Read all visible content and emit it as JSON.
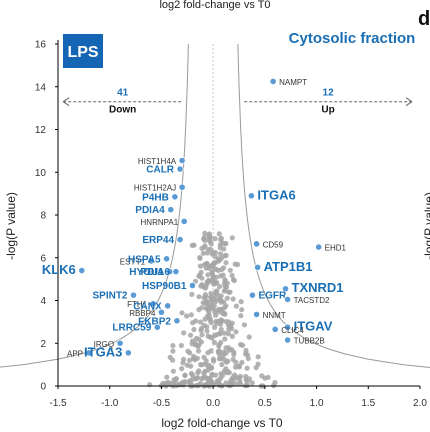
{
  "chart_data": {
    "type": "scatter",
    "title": "log2 fold-change vs T0",
    "subtitle": "Cytosolic fraction",
    "panel_letter": "d",
    "condition_label": "LPS",
    "xlabel": "log2 fold-change vs T0",
    "ylabel": "-log(P value)",
    "right_edge_label": "-log(P value)",
    "xlim": [
      -1.5,
      2.0
    ],
    "ylim": [
      0,
      16
    ],
    "x_ticks": [
      "-1.5",
      "-1.0",
      "-0.5",
      "0.0",
      "0.5",
      "1.0",
      "1.5",
      "2.0"
    ],
    "y_ticks": [
      "0",
      "2",
      "4",
      "6",
      "8",
      "10",
      "12",
      "14",
      "16"
    ],
    "down": {
      "count": "41",
      "label": "Down"
    },
    "up": {
      "count": "12",
      "label": "Up"
    },
    "colors": {
      "highlight": "#5b9bd5",
      "background": "#a6a6a6",
      "label": "#1a6fb5",
      "badge": "#1565b5",
      "threshold": "#9a9a9a"
    },
    "genes": [
      {
        "name": "NAMPT",
        "x": 0.58,
        "y": 14.25,
        "size": "small"
      },
      {
        "name": "HIST1H4A",
        "x": -0.3,
        "y": 10.55,
        "size": "small"
      },
      {
        "name": "CALR",
        "x": -0.32,
        "y": 10.15,
        "size": "medium"
      },
      {
        "name": "HIST1H2AJ",
        "x": -0.3,
        "y": 9.3,
        "size": "small"
      },
      {
        "name": "P4HB",
        "x": -0.37,
        "y": 8.85,
        "size": "medium"
      },
      {
        "name": "ITGA6",
        "x": 0.37,
        "y": 8.9,
        "size": "large"
      },
      {
        "name": "PDIA4",
        "x": -0.41,
        "y": 8.25,
        "size": "medium"
      },
      {
        "name": "HNRNPA1",
        "x": -0.28,
        "y": 7.7,
        "size": "small"
      },
      {
        "name": "ERP44",
        "x": -0.32,
        "y": 6.85,
        "size": "medium"
      },
      {
        "name": "CD59",
        "x": 0.42,
        "y": 6.65,
        "size": "small"
      },
      {
        "name": "EHD1",
        "x": 1.02,
        "y": 6.5,
        "size": "small"
      },
      {
        "name": "ESYT1",
        "x": -0.6,
        "y": 5.85,
        "size": "small"
      },
      {
        "name": "HSPA5",
        "x": -0.45,
        "y": 5.95,
        "size": "medium"
      },
      {
        "name": "KLK6",
        "x": -1.27,
        "y": 5.4,
        "size": "large"
      },
      {
        "name": "HYOU1",
        "x": -0.42,
        "y": 5.35,
        "size": "medium"
      },
      {
        "name": "PDIA6",
        "x": -0.36,
        "y": 5.35,
        "size": "medium"
      },
      {
        "name": "ATP1B1",
        "x": 0.43,
        "y": 5.55,
        "size": "large"
      },
      {
        "name": "HSP90B1",
        "x": -0.2,
        "y": 4.7,
        "size": "medium"
      },
      {
        "name": "TXNRD1",
        "x": 0.7,
        "y": 4.55,
        "size": "large"
      },
      {
        "name": "SPINT2",
        "x": -0.77,
        "y": 4.25,
        "size": "medium"
      },
      {
        "name": "EGFR",
        "x": 0.38,
        "y": 4.25,
        "size": "medium"
      },
      {
        "name": "FTH1",
        "x": -0.58,
        "y": 3.85,
        "size": "small"
      },
      {
        "name": "TACSTD2",
        "x": 0.72,
        "y": 4.05,
        "size": "small"
      },
      {
        "name": "CANX",
        "x": -0.44,
        "y": 3.75,
        "size": "medium"
      },
      {
        "name": "RBBP4",
        "x": -0.5,
        "y": 3.45,
        "size": "small"
      },
      {
        "name": "FKBP2",
        "x": -0.35,
        "y": 3.05,
        "size": "medium"
      },
      {
        "name": "NNMT",
        "x": 0.42,
        "y": 3.35,
        "size": "small"
      },
      {
        "name": "LRRC59",
        "x": -0.54,
        "y": 2.75,
        "size": "medium"
      },
      {
        "name": "ITGAV",
        "x": 0.72,
        "y": 2.75,
        "size": "large"
      },
      {
        "name": "CLIC4",
        "x": 0.6,
        "y": 2.65,
        "size": "small"
      },
      {
        "name": "IRGQ",
        "x": -0.9,
        "y": 2.0,
        "size": "small"
      },
      {
        "name": "TUBB2B",
        "x": 0.72,
        "y": 2.15,
        "size": "small"
      },
      {
        "name": "APP",
        "x": -1.2,
        "y": 1.55,
        "size": "small"
      },
      {
        "name": "ITGA3",
        "x": -0.82,
        "y": 1.55,
        "size": "large"
      }
    ]
  }
}
